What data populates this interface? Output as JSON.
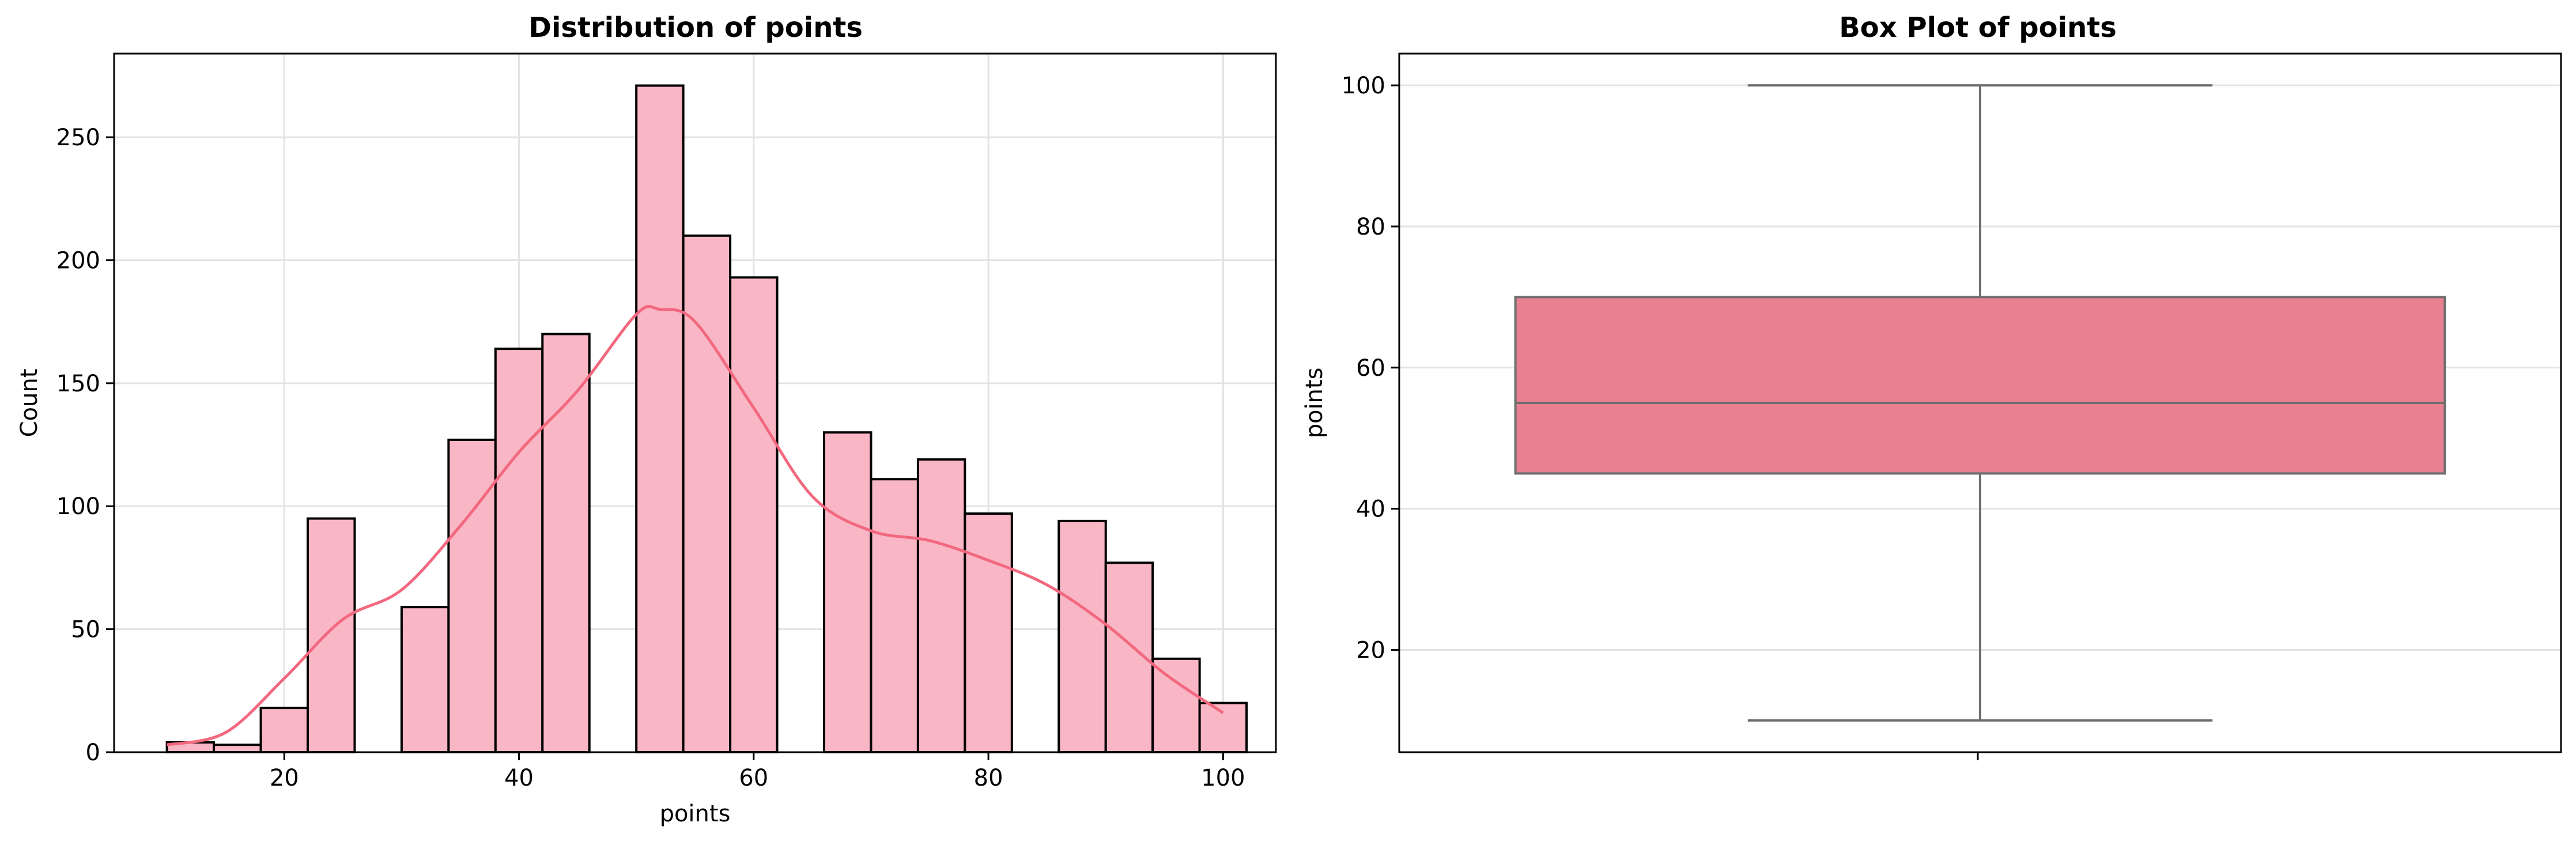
{
  "chart_data": [
    {
      "type": "histogram",
      "title": "Distribution of points",
      "xlabel": "points",
      "ylabel": "Count",
      "xlim": [
        5.5,
        104.5
      ],
      "ylim": [
        0,
        284
      ],
      "xticks": [
        20,
        40,
        60,
        80,
        100
      ],
      "yticks": [
        0,
        50,
        100,
        150,
        200,
        250
      ],
      "grid": true,
      "bar_color": "#f9b6c4",
      "bar_edge_color": "#000000",
      "kde_color": "#f2687f",
      "bins": [
        {
          "x0": 10,
          "x1": 14,
          "count": 4
        },
        {
          "x0": 14,
          "x1": 18,
          "count": 3
        },
        {
          "x0": 18,
          "x1": 22,
          "count": 18
        },
        {
          "x0": 22,
          "x1": 26,
          "count": 95
        },
        {
          "x0": 26,
          "x1": 30,
          "count": 0
        },
        {
          "x0": 30,
          "x1": 34,
          "count": 59
        },
        {
          "x0": 34,
          "x1": 38,
          "count": 127
        },
        {
          "x0": 38,
          "x1": 42,
          "count": 164
        },
        {
          "x0": 42,
          "x1": 46,
          "count": 170
        },
        {
          "x0": 46,
          "x1": 50,
          "count": 0
        },
        {
          "x0": 50,
          "x1": 54,
          "count": 271
        },
        {
          "x0": 54,
          "x1": 58,
          "count": 210
        },
        {
          "x0": 58,
          "x1": 62,
          "count": 193
        },
        {
          "x0": 62,
          "x1": 66,
          "count": 0
        },
        {
          "x0": 66,
          "x1": 70,
          "count": 130
        },
        {
          "x0": 70,
          "x1": 74,
          "count": 111
        },
        {
          "x0": 74,
          "x1": 78,
          "count": 119
        },
        {
          "x0": 78,
          "x1": 82,
          "count": 97
        },
        {
          "x0": 82,
          "x1": 86,
          "count": 0
        },
        {
          "x0": 86,
          "x1": 90,
          "count": 94
        },
        {
          "x0": 90,
          "x1": 94,
          "count": 77
        },
        {
          "x0": 94,
          "x1": 98,
          "count": 38
        },
        {
          "x0": 98,
          "x1": 102,
          "count": 20
        }
      ],
      "kde": {
        "x": [
          10,
          15,
          20,
          25,
          30,
          35,
          40,
          45,
          50,
          52,
          55,
          60,
          65,
          70,
          75,
          80,
          85,
          90,
          95,
          100
        ],
        "y": [
          3,
          8,
          30,
          54,
          66,
          92,
          122,
          147,
          178,
          180,
          175,
          140,
          104,
          90,
          86,
          78,
          68,
          52,
          32,
          16
        ]
      }
    },
    {
      "type": "box",
      "title": "Box Plot of points",
      "xlabel": "",
      "ylabel": "points",
      "ylim": [
        5.5,
        104.5
      ],
      "yticks": [
        20,
        40,
        60,
        80,
        100
      ],
      "grid": true,
      "box_color": "#e88092",
      "line_color": "#6e6e6e",
      "stats": {
        "min": 10,
        "q1": 45,
        "median": 55,
        "q3": 70,
        "max": 100
      }
    }
  ]
}
